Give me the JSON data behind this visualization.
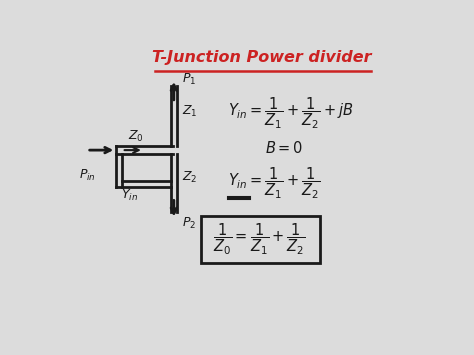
{
  "title": "T-Junction Power divider",
  "title_color": "#cc2222",
  "bg_color": "#dcdcdc",
  "text_color": "#1a1a1a",
  "figsize": [
    4.74,
    3.55
  ],
  "dpi": 100
}
